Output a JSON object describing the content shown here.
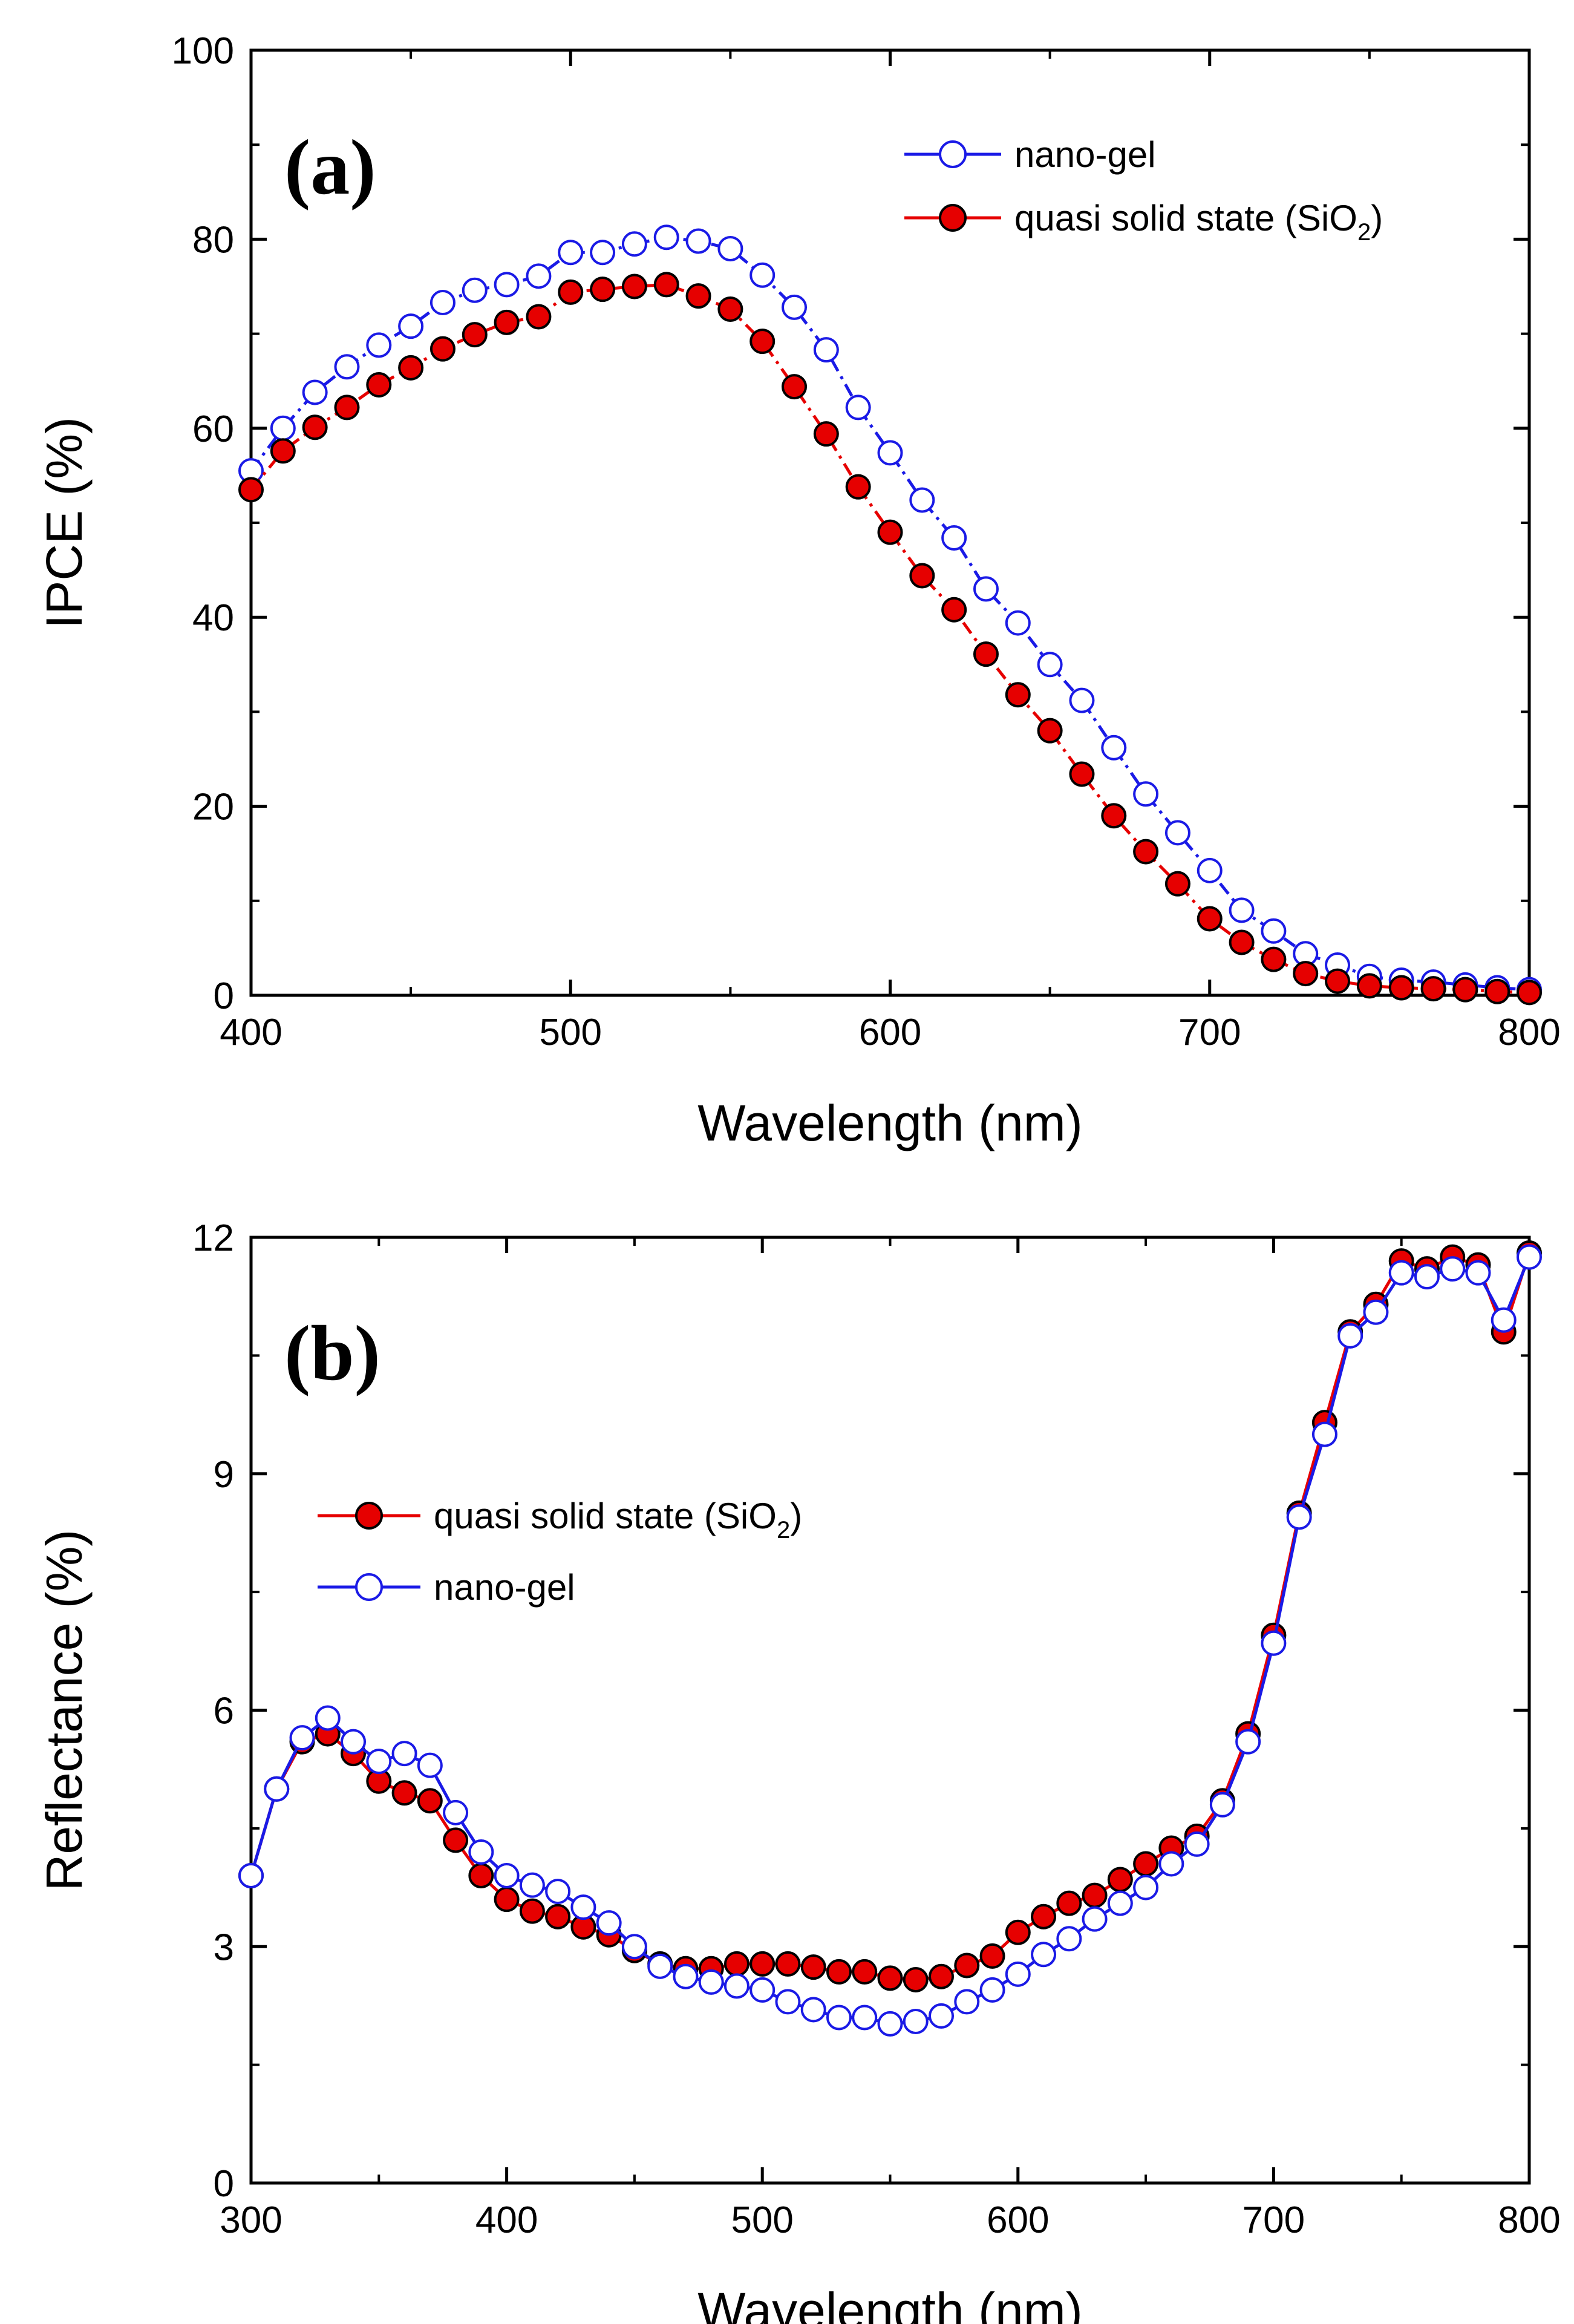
{
  "chart_data": [
    {
      "type": "line",
      "panel_label": "(a)",
      "xlabel": "Wavelength (nm)",
      "ylabel": "IPCE (%)",
      "xlim": [
        400,
        800
      ],
      "ylim": [
        0,
        100
      ],
      "xticks": [
        400,
        500,
        600,
        700,
        800
      ],
      "yticks": [
        0,
        20,
        40,
        60,
        80,
        100
      ],
      "legend_position": "top-right",
      "series": [
        {
          "name": "nano-gel",
          "color": "#1a1ae6",
          "marker": "open-circle",
          "line": "dash-dot",
          "x": [
            400,
            410,
            420,
            430,
            440,
            450,
            460,
            470,
            480,
            490,
            500,
            510,
            520,
            530,
            540,
            550,
            560,
            570,
            580,
            590,
            600,
            610,
            620,
            630,
            640,
            650,
            660,
            670,
            680,
            690,
            700,
            710,
            720,
            730,
            740,
            750,
            760,
            770,
            780,
            790,
            800
          ],
          "values": [
            55.5,
            60,
            63.8,
            66.5,
            68.8,
            70.8,
            73.3,
            74.6,
            75.2,
            76.1,
            78.6,
            78.6,
            79.5,
            80.2,
            79.8,
            79,
            76.2,
            72.8,
            68.3,
            62.2,
            57.4,
            52.4,
            48.4,
            43,
            39.4,
            35,
            31.2,
            26.2,
            21.3,
            17.2,
            13.2,
            9,
            6.8,
            4.4,
            3.2,
            2,
            1.6,
            1.4,
            1.1,
            0.8,
            0.6
          ]
        },
        {
          "name": "quasi solid state (SiO",
          "name_sub": "2",
          "name_suffix": ")",
          "color": "#e60000",
          "marker": "filled-circle",
          "line": "dash-dot",
          "x": [
            400,
            410,
            420,
            430,
            440,
            450,
            460,
            470,
            480,
            490,
            500,
            510,
            520,
            530,
            540,
            550,
            560,
            570,
            580,
            590,
            600,
            610,
            620,
            630,
            640,
            650,
            660,
            670,
            680,
            690,
            700,
            710,
            720,
            730,
            740,
            750,
            760,
            770,
            780,
            790,
            800
          ],
          "values": [
            53.5,
            57.6,
            60.1,
            62.2,
            64.6,
            66.4,
            68.4,
            69.9,
            71.2,
            71.8,
            74.4,
            74.7,
            75,
            75.2,
            74,
            72.6,
            69.2,
            64.4,
            59.4,
            53.8,
            49,
            44.4,
            40.8,
            36.1,
            31.8,
            28,
            23.4,
            19,
            15.2,
            11.8,
            8.1,
            5.6,
            3.8,
            2.3,
            1.5,
            1,
            0.8,
            0.7,
            0.6,
            0.4,
            0.3
          ]
        }
      ]
    },
    {
      "type": "line",
      "panel_label": "(b)",
      "xlabel": "Wavelength (nm)",
      "ylabel": "Reflectance (%)",
      "xlim": [
        300,
        800
      ],
      "ylim": [
        0,
        12
      ],
      "xticks": [
        300,
        400,
        500,
        600,
        700,
        800
      ],
      "yticks": [
        0,
        3,
        6,
        9,
        12
      ],
      "legend_position": "middle-left",
      "series": [
        {
          "name": "quasi solid state (SiO",
          "name_sub": "2",
          "name_suffix": ")",
          "color": "#e60000",
          "marker": "filled-circle",
          "line": "solid",
          "x": [
            300,
            310,
            320,
            330,
            340,
            350,
            360,
            370,
            380,
            390,
            400,
            410,
            420,
            430,
            440,
            450,
            460,
            470,
            480,
            490,
            500,
            510,
            520,
            530,
            540,
            550,
            560,
            570,
            580,
            590,
            600,
            610,
            620,
            630,
            640,
            650,
            660,
            670,
            680,
            690,
            700,
            710,
            720,
            730,
            740,
            750,
            760,
            770,
            780,
            790,
            800
          ],
          "values": [
            3.9,
            5,
            5.6,
            5.7,
            5.45,
            5.1,
            4.95,
            4.85,
            4.35,
            3.9,
            3.6,
            3.45,
            3.38,
            3.25,
            3.15,
            2.95,
            2.78,
            2.72,
            2.72,
            2.78,
            2.78,
            2.78,
            2.74,
            2.68,
            2.68,
            2.6,
            2.58,
            2.62,
            2.76,
            2.88,
            3.18,
            3.38,
            3.55,
            3.65,
            3.85,
            4.05,
            4.25,
            4.4,
            4.85,
            5.7,
            6.95,
            8.5,
            9.65,
            10.8,
            11.15,
            11.7,
            11.6,
            11.75,
            11.65,
            10.8,
            11.8
          ]
        },
        {
          "name": "nano-gel",
          "color": "#1a1ae6",
          "marker": "open-circle",
          "line": "solid",
          "x": [
            300,
            310,
            320,
            330,
            340,
            350,
            360,
            370,
            380,
            390,
            400,
            410,
            420,
            430,
            440,
            450,
            460,
            470,
            480,
            490,
            500,
            510,
            520,
            530,
            540,
            550,
            560,
            570,
            580,
            590,
            600,
            610,
            620,
            630,
            640,
            650,
            660,
            670,
            680,
            690,
            700,
            710,
            720,
            730,
            740,
            750,
            760,
            770,
            780,
            790,
            800
          ],
          "values": [
            3.9,
            5,
            5.65,
            5.9,
            5.6,
            5.35,
            5.45,
            5.3,
            4.7,
            4.2,
            3.9,
            3.78,
            3.7,
            3.5,
            3.3,
            3,
            2.75,
            2.62,
            2.55,
            2.5,
            2.45,
            2.3,
            2.2,
            2.1,
            2.1,
            2.02,
            2.05,
            2.12,
            2.3,
            2.45,
            2.65,
            2.9,
            3.1,
            3.35,
            3.55,
            3.75,
            4.05,
            4.3,
            4.8,
            5.6,
            6.85,
            8.45,
            9.5,
            10.75,
            11.05,
            11.55,
            11.5,
            11.6,
            11.55,
            10.95,
            11.75
          ]
        }
      ]
    }
  ]
}
